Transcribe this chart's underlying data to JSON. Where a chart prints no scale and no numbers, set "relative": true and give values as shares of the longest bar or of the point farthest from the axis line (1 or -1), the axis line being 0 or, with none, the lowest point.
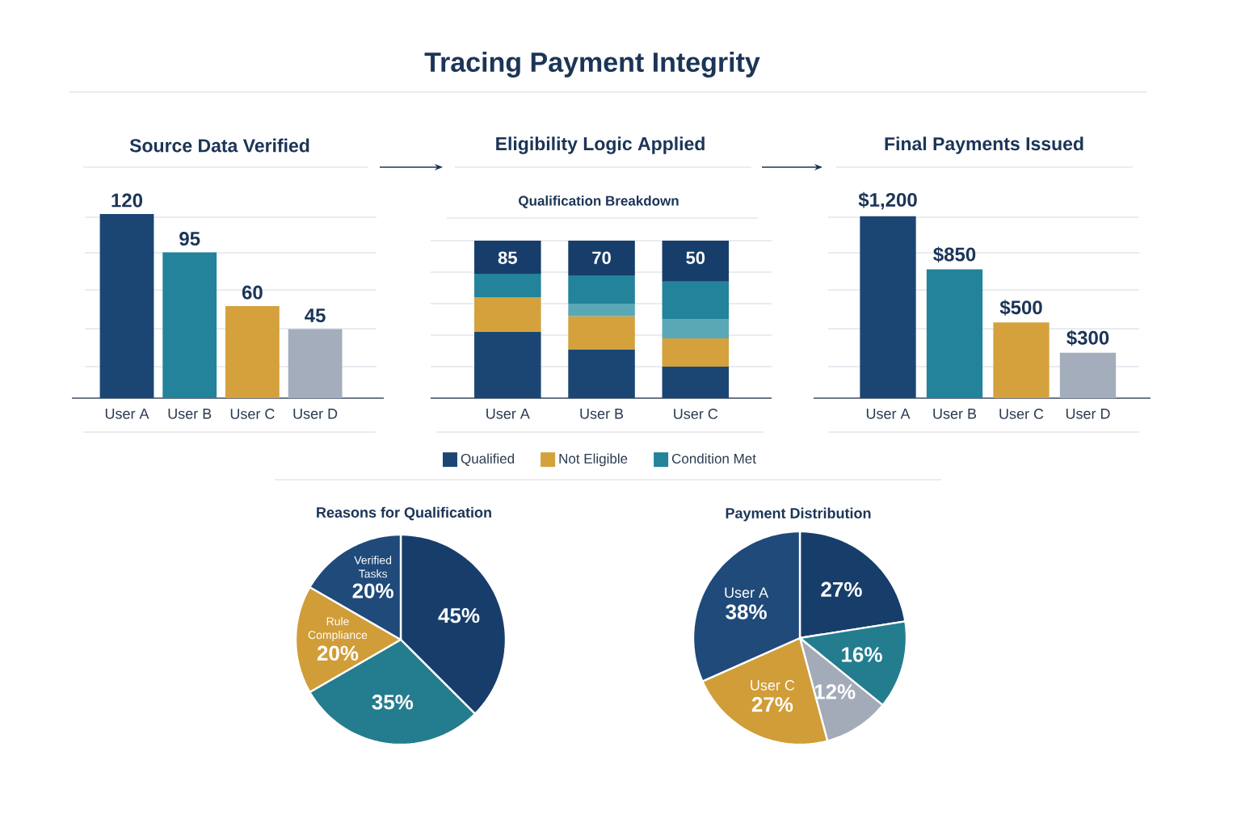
{
  "chart_data": [
    {
      "type": "other",
      "title": "Tracing Payment Integrity"
    },
    {
      "type": "bar",
      "title": "Source Data Verified",
      "categories": [
        "User A",
        "User B",
        "User C",
        "User D"
      ],
      "values": [
        120,
        95,
        60,
        45
      ],
      "colors": [
        "#1B4674",
        "#23839A",
        "#D4A13D",
        "#A3ADBB"
      ],
      "data_labels": true,
      "tick_labels": "x"
    },
    {
      "type": "bar",
      "title": "Eligibility Logic Applied",
      "subtitle": "Qualification Breakdown",
      "categories": [
        "User A",
        "User B",
        "User C"
      ],
      "stacked": true,
      "relative": true,
      "series": [
        {
          "name": "Qualified",
          "color": "#1B4674",
          "values": [
            0.42,
            0.31,
            0.2
          ]
        },
        {
          "name": "Not Eligible",
          "color": "#D4A13D",
          "values": [
            0.22,
            0.21,
            0.18
          ]
        },
        {
          "color": "#5AA8B6",
          "values": [
            null,
            0.08,
            0.12
          ]
        },
        {
          "name": "Condition Met",
          "color": "#23839A",
          "values": [
            0.15,
            0.18,
            0.24
          ]
        },
        {
          "color": "#173E6B",
          "values": [
            0.21,
            0.22,
            0.26
          ]
        }
      ],
      "annotations": [
        {
          "text": "85",
          "x": "User A",
          "y": 1
        },
        {
          "text": "70",
          "x": "User B",
          "y": 1
        },
        {
          "text": "50",
          "x": "User C",
          "y": 1
        }
      ],
      "legend": "bottom",
      "grid": "y",
      "tick_labels": "x"
    },
    {
      "type": "bar",
      "title": "Final Payments Issued",
      "categories": [
        "User A",
        "User B",
        "User C",
        "User D"
      ],
      "values": [
        1200,
        850,
        500,
        300
      ],
      "value_labels": [
        "$1,200",
        "$850",
        "$500",
        "$300"
      ],
      "colors": [
        "#1B4674",
        "#23839A",
        "#D4A13D",
        "#A3ADBB"
      ],
      "tick_labels": "x"
    },
    {
      "type": "pie",
      "title": "Reasons for Qualification",
      "categories": [
        null,
        null,
        "Rule Compliance",
        "Verified Tasks"
      ],
      "values": [
        45,
        35,
        20,
        20
      ],
      "value_labels": [
        "45%",
        "35%",
        "20%",
        "20%"
      ],
      "colors": [
        "#173E6B",
        "#237D8E",
        "#D09D38",
        "#1F4A7A"
      ]
    },
    {
      "type": "pie",
      "title": "Payment Distribution",
      "categories": [
        null,
        null,
        null,
        "User C",
        "User A"
      ],
      "values": [
        27,
        16,
        12,
        27,
        38
      ],
      "value_labels": [
        "27%",
        "16%",
        "12%",
        "27%",
        "38%"
      ],
      "colors": [
        "#173E6B",
        "#237D8E",
        "#A3ABB8",
        "#D09D38",
        "#1F4A7A"
      ]
    }
  ]
}
